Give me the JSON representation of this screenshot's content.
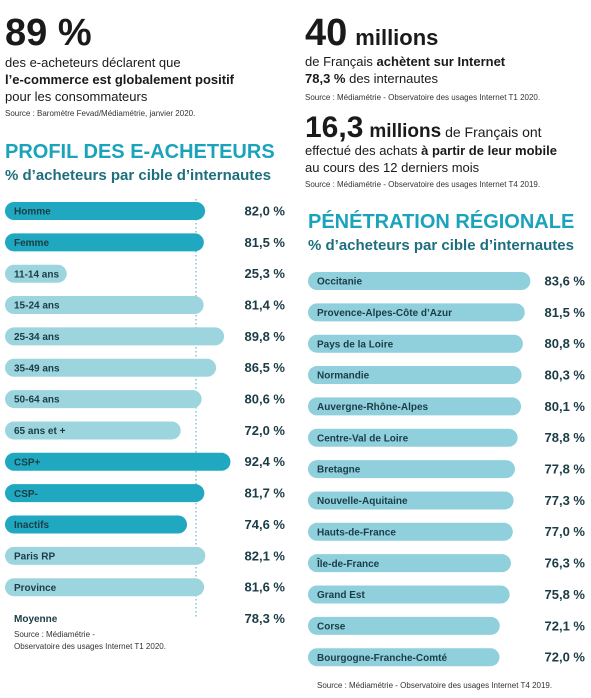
{
  "stats": [
    {
      "figure": "89 %",
      "line1": "des e-acheteurs déclarent que",
      "line2": "l’e-commerce est globalement positif",
      "line3": "pour les consommateurs",
      "source": "Source : Baromètre Fevad/Médiamétrie, janvier 2020."
    },
    {
      "figure": "40",
      "unit": "millions",
      "line1a": "de Français ",
      "line1b": "achètent sur Internet",
      "line2a": "78,3 %",
      "line2b": " des internautes",
      "source": "Source : Médiamétrie - Observatoire des usages Internet T1 2020."
    },
    {
      "figure": "16,3",
      "unit": "millions",
      "line1": " de Français ont",
      "line2a": "effectué des achats ",
      "line2b": "à partir de leur mobile",
      "line3": "au cours des 12 derniers mois",
      "source": "Source : Médiamétrie - Observatoire des usages Internet T4 2019."
    }
  ],
  "chart_data": [
    {
      "type": "bar",
      "orientation": "horizontal",
      "title": "PROFIL DES E-ACHETEURS",
      "subtitle": "% d’acheteurs par cible d’internautes",
      "categories": [
        "Homme",
        "Femme",
        "11-14 ans",
        "15-24 ans",
        "25-34 ans",
        "35-49 ans",
        "50-64 ans",
        "65 ans et +",
        "CSP+",
        "CSP-",
        "Inactifs",
        "Paris RP",
        "Province"
      ],
      "values": [
        82.0,
        81.5,
        25.3,
        81.4,
        89.8,
        86.5,
        80.6,
        72.0,
        92.4,
        81.7,
        74.6,
        82.1,
        81.6
      ],
      "value_labels": [
        "82,0 %",
        "81,5 %",
        "25,3 %",
        "81,4 %",
        "89,8 %",
        "86,5 %",
        "80,6 %",
        "72,0 %",
        "92,4 %",
        "81,7 %",
        "74,6 %",
        "82,1 %",
        "81,6 %"
      ],
      "colors": [
        "#1fa8c0",
        "#1fa8c0",
        "#9dd5df",
        "#9dd5df",
        "#9dd5df",
        "#9dd5df",
        "#9dd5df",
        "#9dd5df",
        "#1fa8c0",
        "#1fa8c0",
        "#1fa8c0",
        "#9dd5df",
        "#9dd5df"
      ],
      "average": {
        "label": "Moyenne",
        "value": 78.3,
        "value_label": "78,3 %"
      },
      "xlim": [
        0,
        100
      ],
      "source": [
        "Source : Médiamétrie -",
        "Observatoire des usages Internet T1 2020."
      ]
    },
    {
      "type": "bar",
      "orientation": "horizontal",
      "title": "PÉNÉTRATION RÉGIONALE",
      "subtitle": "% d’acheteurs par cible d’internautes",
      "categories": [
        "Occitanie",
        "Provence-Alpes-Côte d’Azur",
        "Pays de la Loire",
        "Normandie",
        "Auvergne-Rhône-Alpes",
        "Centre-Val de Loire",
        "Bretagne",
        "Nouvelle-Aquitaine",
        "Hauts-de-France",
        "Île-de-France",
        "Grand Est",
        "Corse",
        "Bourgogne-Franche-Comté"
      ],
      "values": [
        83.6,
        81.5,
        80.8,
        80.3,
        80.1,
        78.8,
        77.8,
        77.3,
        77.0,
        76.3,
        75.8,
        72.1,
        72.0
      ],
      "value_labels": [
        "83,6 %",
        "81,5 %",
        "80,8 %",
        "80,3 %",
        "80,1 %",
        "78,8 %",
        "77,8 %",
        "77,3 %",
        "77,0 %",
        "76,3 %",
        "75,8 %",
        "72,1 %",
        "72,0 %"
      ],
      "color": "#8fd0dc",
      "xlim": [
        0,
        100
      ],
      "source": [
        "Source : Médiamétrie - Observatoire des usages Internet T4 2019."
      ]
    }
  ]
}
